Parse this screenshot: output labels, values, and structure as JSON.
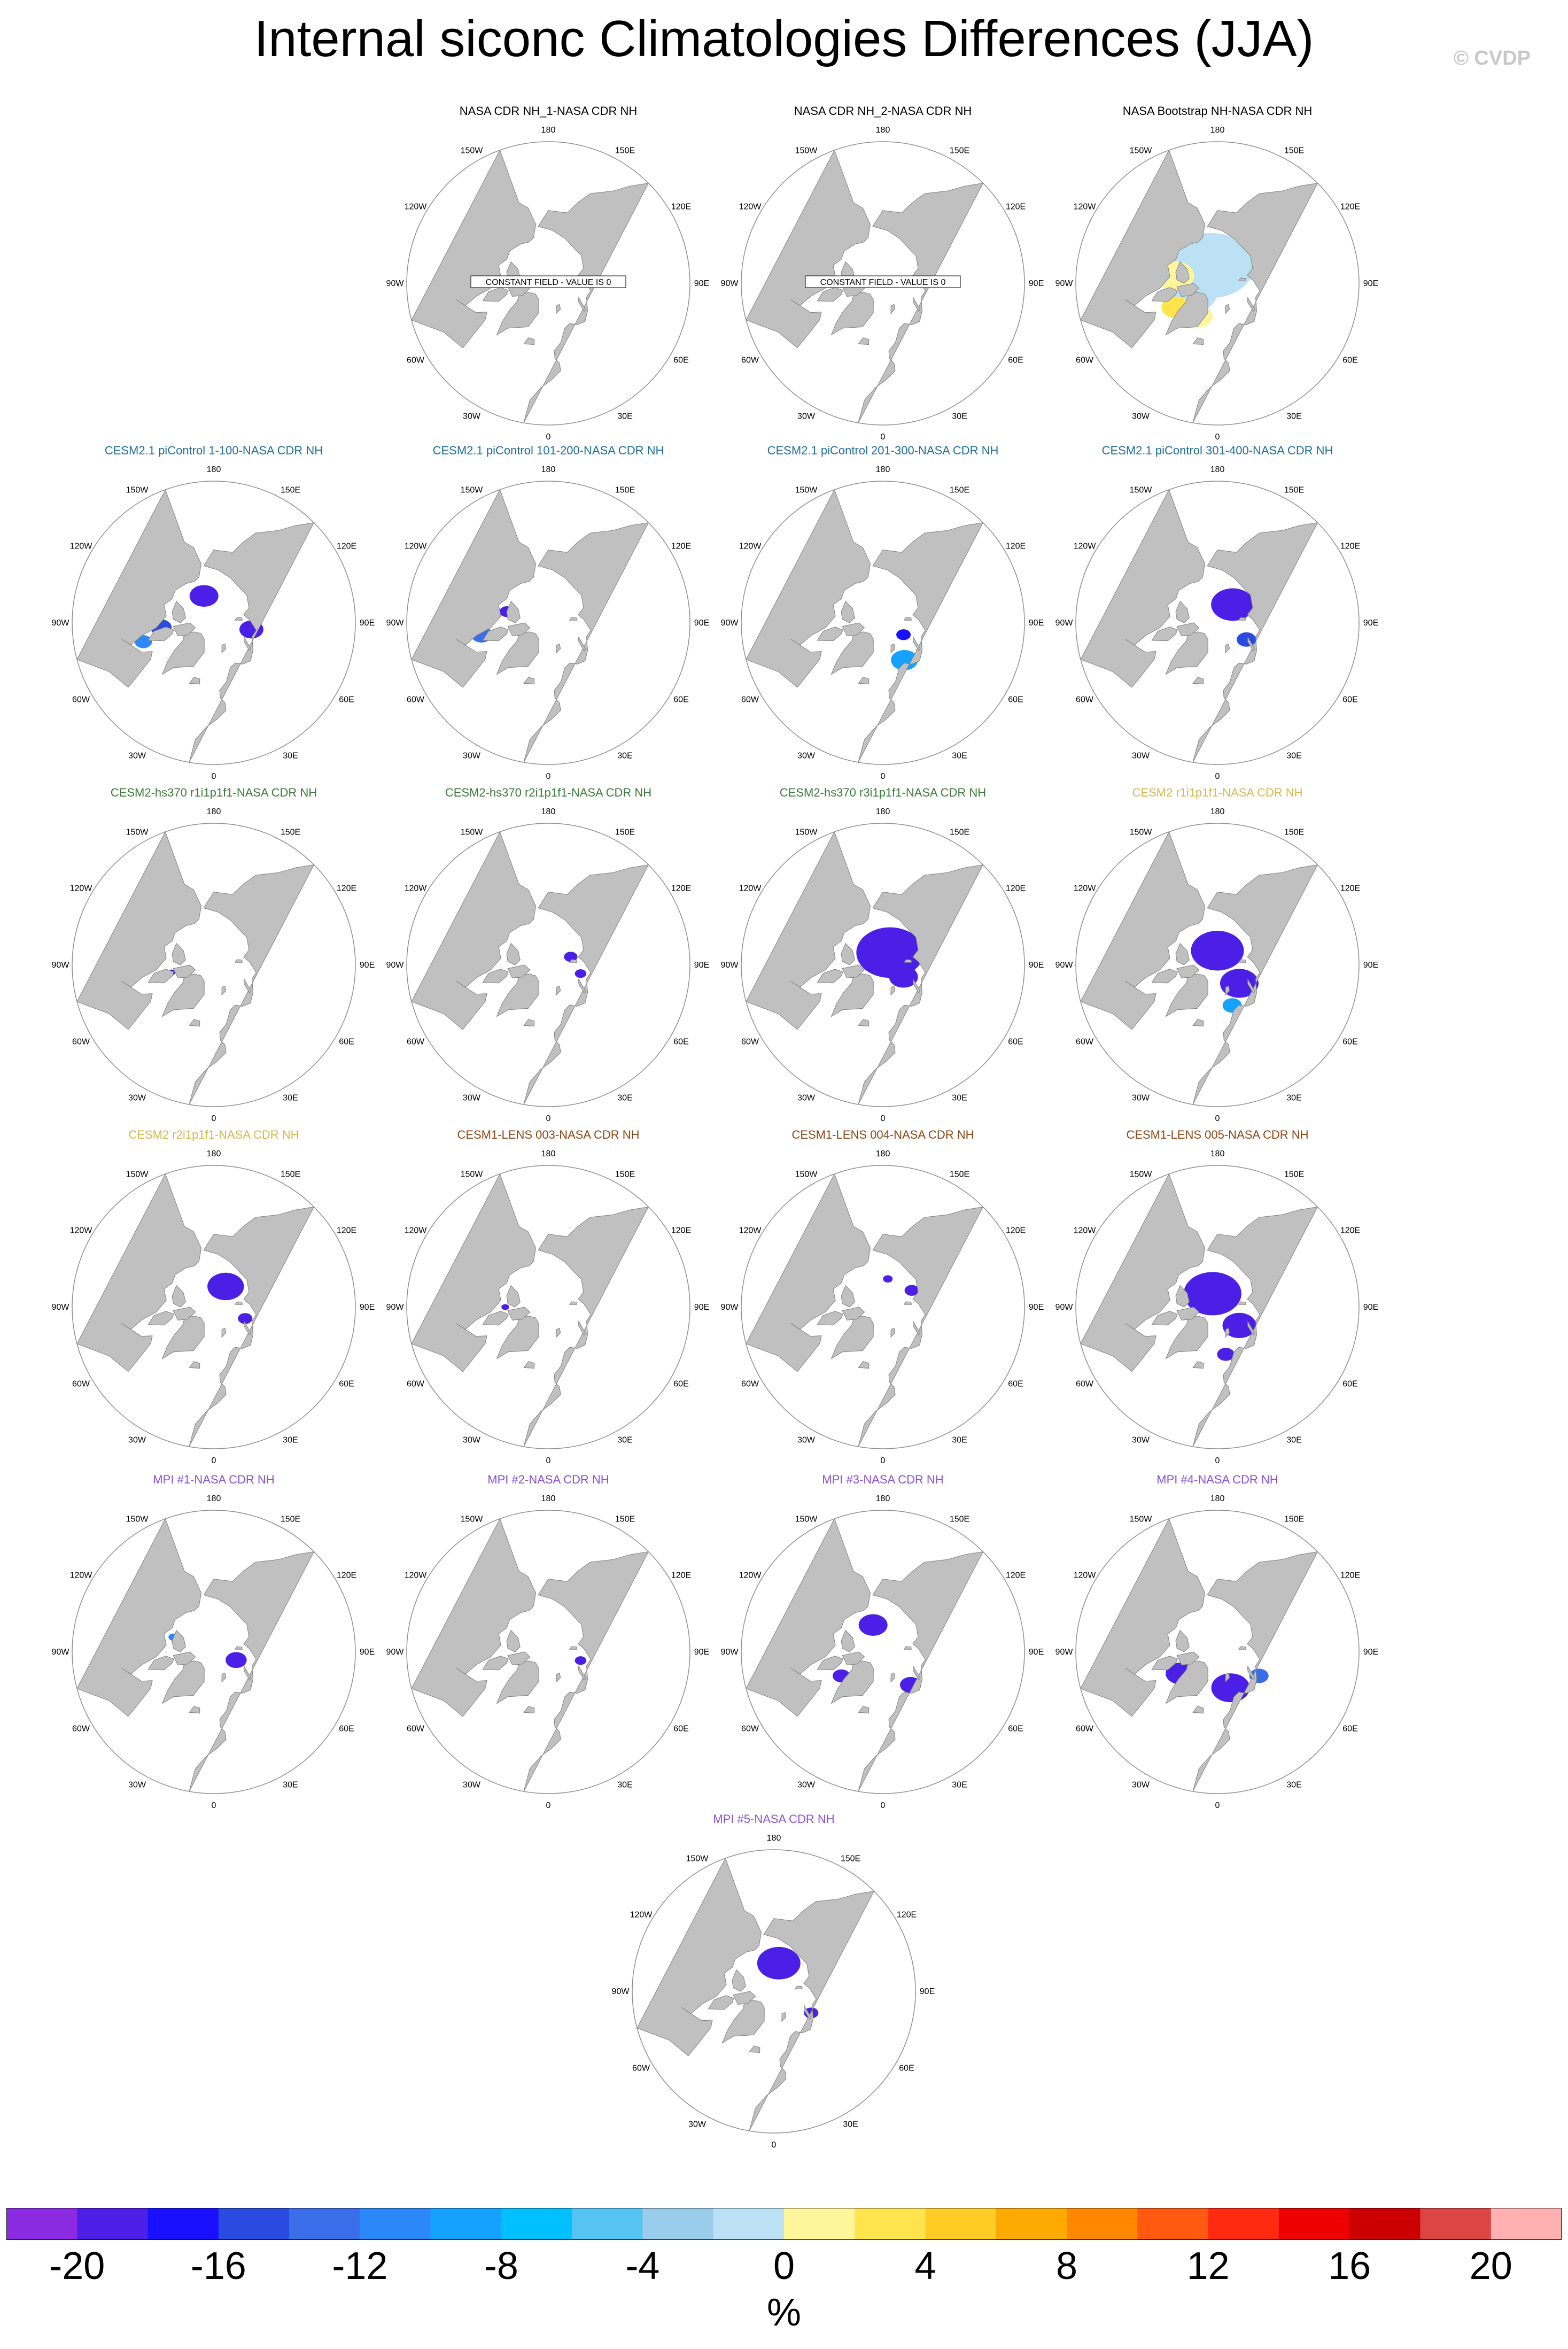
{
  "title": "Internal siconc Climatologies Differences (JJA)",
  "copyright": "© CVDP",
  "lon_labels": [
    "180",
    "150E",
    "120E",
    "90E",
    "60E",
    "30E",
    "0",
    "30W",
    "60W",
    "90W",
    "120W",
    "150W"
  ],
  "constant_field_text": "CONSTANT FIELD - VALUE IS 0",
  "colors": {
    "land": "#c0c0c0",
    "land_edge": "#808080",
    "ocean": "#ffffff",
    "title_nasa": "#000000",
    "title_cesm21": "#1f6f9a",
    "title_hs370": "#3c7a3c",
    "title_cesm2": "#d4b84c",
    "title_lens": "#8b4513",
    "title_mpi": "#8a4fd8"
  },
  "panels": [
    {
      "title": "NASA CDR NH_1-NASA CDR NH",
      "group": "nasa",
      "constant": true,
      "blobs": []
    },
    {
      "title": "NASA CDR NH_2-NASA CDR NH",
      "group": "nasa",
      "constant": true,
      "blobs": []
    },
    {
      "title": "NASA Bootstrap NH-NASA CDR NH",
      "group": "nasa",
      "constant": false,
      "blobs": [
        {
          "lat": 82,
          "lon": 200,
          "r": 90,
          "v": -1
        },
        {
          "lat": 78,
          "lon": 290,
          "r": 55,
          "v": -1
        },
        {
          "lat": 72,
          "lon": 260,
          "r": 40,
          "v": 1
        },
        {
          "lat": 70,
          "lon": 300,
          "r": 30,
          "v": 2
        },
        {
          "lat": 74,
          "lon": 330,
          "r": 30,
          "v": 1
        }
      ]
    },
    {
      "title": "CESM2.1 piControl 1-100-NASA CDR NH",
      "group": "cesm21",
      "constant": false,
      "blobs": [
        {
          "lat": 78,
          "lon": 200,
          "r": 30,
          "v": -20
        },
        {
          "lat": 74,
          "lon": 80,
          "r": 25,
          "v": -20
        },
        {
          "lat": 68,
          "lon": 275,
          "r": 22,
          "v": -16
        },
        {
          "lat": 60,
          "lon": 285,
          "r": 18,
          "v": -12
        }
      ]
    },
    {
      "title": "CESM2.1 piControl 101-200-NASA CDR NH",
      "group": "cesm21",
      "constant": false,
      "blobs": [
        {
          "lat": 62,
          "lon": 280,
          "r": 22,
          "v": -14
        },
        {
          "lat": 72,
          "lon": 255,
          "r": 15,
          "v": -20
        }
      ]
    },
    {
      "title": "CESM2.1 piControl 201-300-NASA CDR NH",
      "group": "cesm21",
      "constant": false,
      "blobs": [
        {
          "lat": 72,
          "lon": 30,
          "r": 28,
          "v": -10
        },
        {
          "lat": 80,
          "lon": 60,
          "r": 15,
          "v": -18
        }
      ]
    },
    {
      "title": "CESM2.1 piControl 301-400-NASA CDR NH",
      "group": "cesm21",
      "constant": false,
      "blobs": [
        {
          "lat": 80,
          "lon": 140,
          "r": 45,
          "v": -20
        },
        {
          "lat": 76,
          "lon": 60,
          "r": 20,
          "v": -16
        }
      ]
    },
    {
      "title": "CESM2-hs370 r1i1p1f1-NASA CDR NH",
      "group": "hs370",
      "constant": false,
      "blobs": [
        {
          "lat": 72,
          "lon": 280,
          "r": 8,
          "v": -20
        }
      ]
    },
    {
      "title": "CESM2-hs370 r2i1p1f1-NASA CDR NH",
      "group": "hs370",
      "constant": false,
      "blobs": [
        {
          "lat": 80,
          "lon": 110,
          "r": 14,
          "v": -20
        },
        {
          "lat": 76,
          "lon": 75,
          "r": 12,
          "v": -20
        }
      ]
    },
    {
      "title": "CESM2-hs370 r3i1p1f1-NASA CDR NH",
      "group": "hs370",
      "constant": false,
      "blobs": [
        {
          "lat": 84,
          "lon": 150,
          "r": 70,
          "v": -20
        },
        {
          "lat": 80,
          "lon": 60,
          "r": 30,
          "v": -20
        }
      ]
    },
    {
      "title": "CESM2 r1i1p1f1-NASA CDR NH",
      "group": "cesm2",
      "constant": false,
      "blobs": [
        {
          "lat": 84,
          "lon": 180,
          "r": 55,
          "v": -20
        },
        {
          "lat": 78,
          "lon": 50,
          "r": 40,
          "v": -20
        },
        {
          "lat": 72,
          "lon": 20,
          "r": 20,
          "v": -10
        }
      ]
    },
    {
      "title": "CESM2 r2i1p1f1-NASA CDR NH",
      "group": "cesm2",
      "constant": false,
      "blobs": [
        {
          "lat": 80,
          "lon": 150,
          "r": 38,
          "v": -20
        },
        {
          "lat": 76,
          "lon": 70,
          "r": 15,
          "v": -20
        }
      ]
    },
    {
      "title": "CESM1-LENS 003-NASA CDR NH",
      "group": "lens",
      "constant": false,
      "blobs": [
        {
          "lat": 72,
          "lon": 270,
          "r": 8,
          "v": -20
        }
      ]
    },
    {
      "title": "CESM1-LENS 004-NASA CDR NH",
      "group": "lens",
      "constant": false,
      "blobs": [
        {
          "lat": 76,
          "lon": 120,
          "r": 15,
          "v": -20
        },
        {
          "lat": 78,
          "lon": 170,
          "r": 10,
          "v": -20
        }
      ]
    },
    {
      "title": "CESM1-LENS 005-NASA CDR NH",
      "group": "lens",
      "constant": false,
      "blobs": [
        {
          "lat": 84,
          "lon": 200,
          "r": 60,
          "v": -20
        },
        {
          "lat": 78,
          "lon": 50,
          "r": 35,
          "v": -20
        },
        {
          "lat": 70,
          "lon": 10,
          "r": 18,
          "v": -20
        }
      ]
    },
    {
      "title": "MPI #1-NASA CDR NH",
      "group": "mpi",
      "constant": false,
      "blobs": [
        {
          "lat": 80,
          "lon": 70,
          "r": 22,
          "v": -20
        },
        {
          "lat": 72,
          "lon": 250,
          "r": 10,
          "v": -12
        }
      ]
    },
    {
      "title": "MPI #2-NASA CDR NH",
      "group": "mpi",
      "constant": false,
      "blobs": [
        {
          "lat": 76,
          "lon": 75,
          "r": 12,
          "v": -20
        }
      ]
    },
    {
      "title": "MPI #3-NASA CDR NH",
      "group": "mpi",
      "constant": false,
      "blobs": [
        {
          "lat": 78,
          "lon": 200,
          "r": 30,
          "v": -20
        },
        {
          "lat": 72,
          "lon": 40,
          "r": 22,
          "v": -20
        },
        {
          "lat": 70,
          "lon": 300,
          "r": 18,
          "v": -20
        }
      ]
    },
    {
      "title": "MPI #4-NASA CDR NH",
      "group": "mpi",
      "constant": false,
      "blobs": [
        {
          "lat": 74,
          "lon": 20,
          "r": 40,
          "v": -20
        },
        {
          "lat": 72,
          "lon": 300,
          "r": 30,
          "v": -20
        },
        {
          "lat": 70,
          "lon": 60,
          "r": 20,
          "v": -14
        }
      ]
    },
    {
      "title": "MPI #5-NASA CDR NH",
      "group": "mpi",
      "constant": false,
      "blobs": [
        {
          "lat": 78,
          "lon": 170,
          "r": 45,
          "v": -20
        },
        {
          "lat": 72,
          "lon": 60,
          "r": 15,
          "v": -20
        }
      ]
    }
  ],
  "colorbar": {
    "levels": [
      -20,
      -18,
      -16,
      -14,
      -12,
      -10,
      -8,
      -6,
      -4,
      -2,
      0,
      2,
      4,
      6,
      8,
      10,
      12,
      14,
      16,
      18,
      20
    ],
    "colors": [
      "#8a2be2",
      "#4b1fe6",
      "#1a10ff",
      "#2a4ae0",
      "#3a6ee8",
      "#2a88f8",
      "#15a2ff",
      "#00c0ff",
      "#55c4f2",
      "#9acdec",
      "#bde1f4",
      "#fff59a",
      "#ffe44d",
      "#ffcc26",
      "#ffaa00",
      "#ff8800",
      "#ff5a10",
      "#ff2a10",
      "#ee0000",
      "#cc0000",
      "#dd4444",
      "#ffb0b0"
    ],
    "tick_labels": [
      "-20",
      "-16",
      "-12",
      "-8",
      "-4",
      "0",
      "4",
      "8",
      "12",
      "16",
      "20"
    ],
    "unit": "%"
  }
}
